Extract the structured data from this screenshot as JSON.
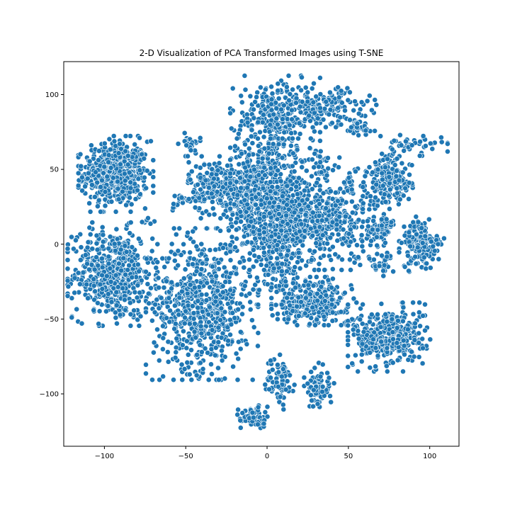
{
  "chart_data": {
    "type": "scatter",
    "title": "2-D Visualization of PCA Transformed Images using T-SNE",
    "xlabel": "",
    "ylabel": "",
    "xlim": [
      -125,
      118
    ],
    "ylim": [
      -135,
      122
    ],
    "xticks": [
      -100,
      -50,
      0,
      50,
      100
    ],
    "yticks": [
      -100,
      -50,
      0,
      50,
      100
    ],
    "xtick_labels": [
      "−100",
      "−50",
      "0",
      "50",
      "100"
    ],
    "ytick_labels": [
      "−100",
      "−50",
      "0",
      "50",
      "100"
    ],
    "grid": false,
    "legend": "none",
    "marker_color": "#1f77b4",
    "marker_edge_color": "#ffffff",
    "series": [
      {
        "values_description": "t-SNE embedding clusters (center x, center y, spread x, spread y, approx point count)",
        "clusters": [
          {
            "cx": -93,
            "cy": 47,
            "sx": 10,
            "sy": 11,
            "n": 520
          },
          {
            "cx": -95,
            "cy": -20,
            "sx": 12,
            "sy": 15,
            "n": 520
          },
          {
            "cx": -40,
            "cy": -40,
            "sx": 15,
            "sy": 22,
            "n": 700
          },
          {
            "cx": -30,
            "cy": 38,
            "sx": 9,
            "sy": 9,
            "n": 230
          },
          {
            "cx": -8,
            "cy": 35,
            "sx": 9,
            "sy": 15,
            "n": 250
          },
          {
            "cx": 5,
            "cy": 85,
            "sx": 12,
            "sy": 12,
            "n": 260
          },
          {
            "cx": 35,
            "cy": 92,
            "sx": 14,
            "sy": 6,
            "n": 160
          },
          {
            "cx": 55,
            "cy": 78,
            "sx": 5,
            "sy": 4,
            "n": 40
          },
          {
            "cx": 5,
            "cy": 20,
            "sx": 12,
            "sy": 22,
            "n": 600
          },
          {
            "cx": 35,
            "cy": 15,
            "sx": 16,
            "sy": 14,
            "n": 450
          },
          {
            "cx": 75,
            "cy": 42,
            "sx": 7,
            "sy": 8,
            "n": 180
          },
          {
            "cx": 88,
            "cy": 66,
            "sx": 10,
            "sy": 3,
            "n": 45
          },
          {
            "cx": 95,
            "cy": 0,
            "sx": 6,
            "sy": 8,
            "n": 170
          },
          {
            "cx": 70,
            "cy": 10,
            "sx": 5,
            "sy": 4,
            "n": 50
          },
          {
            "cx": 70,
            "cy": -12,
            "sx": 4,
            "sy": 4,
            "n": 30
          },
          {
            "cx": 28,
            "cy": -38,
            "sx": 11,
            "sy": 7,
            "n": 320
          },
          {
            "cx": 8,
            "cy": -18,
            "sx": 5,
            "sy": 6,
            "n": 50
          },
          {
            "cx": 75,
            "cy": -62,
            "sx": 11,
            "sy": 10,
            "n": 380
          },
          {
            "cx": 8,
            "cy": -92,
            "sx": 4,
            "sy": 8,
            "n": 70
          },
          {
            "cx": 32,
            "cy": -95,
            "sx": 4,
            "sy": 7,
            "n": 80
          },
          {
            "cx": -9,
            "cy": -116,
            "sx": 4,
            "sy": 4,
            "n": 55
          },
          {
            "cx": -48,
            "cy": 68,
            "sx": 3,
            "sy": 4,
            "n": 25
          },
          {
            "cx": -55,
            "cy": 28,
            "sx": 3,
            "sy": 3,
            "n": 18
          },
          {
            "cx": -73,
            "cy": 16,
            "sx": 2,
            "sy": 1,
            "n": 6
          },
          {
            "cx": 33,
            "cy": 55,
            "sx": 5,
            "sy": 4,
            "n": 30
          },
          {
            "cx": 50,
            "cy": 45,
            "sx": 3,
            "sy": 6,
            "n": 20
          }
        ]
      }
    ]
  }
}
